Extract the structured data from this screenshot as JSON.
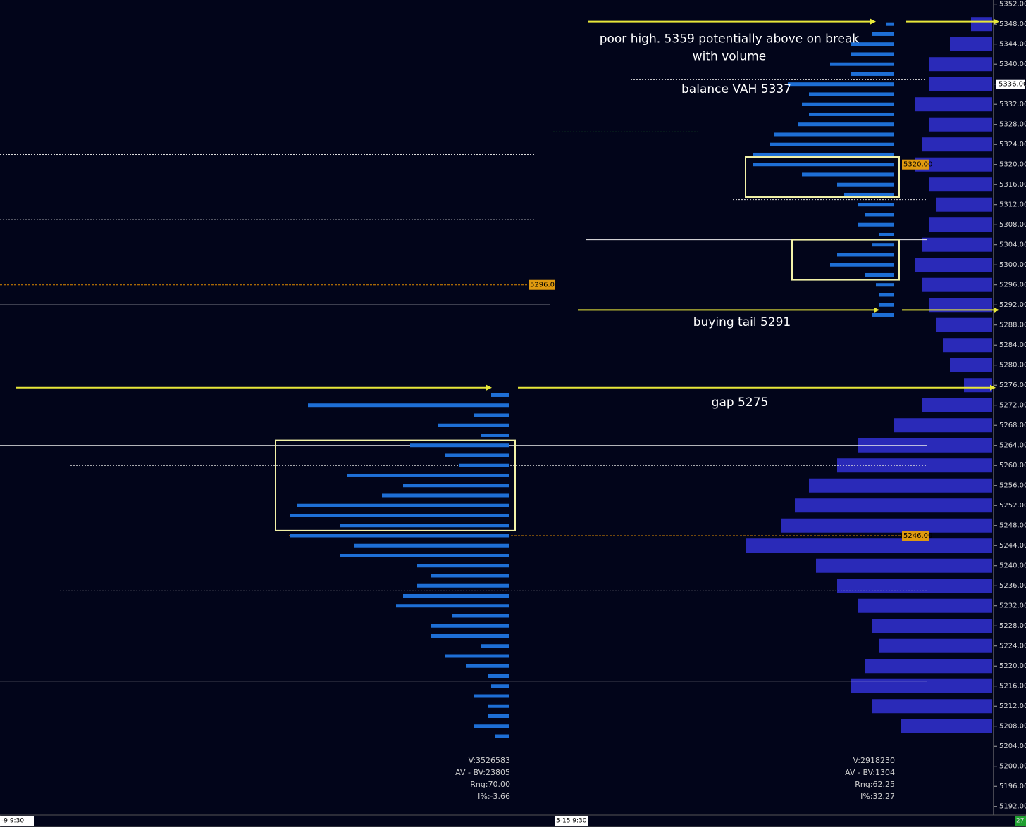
{
  "chart_data": {
    "type": "market-profile",
    "ylim": [
      5190,
      5352.8
    ],
    "yticks": [
      {
        "value": 5192,
        "label": "5192.00"
      },
      {
        "value": 5196,
        "label": "5196.00"
      },
      {
        "value": 5200,
        "label": "5200.00"
      },
      {
        "value": 5204,
        "label": "5204.00"
      },
      {
        "value": 5208,
        "label": "5208.00"
      },
      {
        "value": 5212,
        "label": "5212.00"
      },
      {
        "value": 5216,
        "label": "5216.00"
      },
      {
        "value": 5220,
        "label": "5220.00"
      },
      {
        "value": 5224,
        "label": "5224.00"
      },
      {
        "value": 5228,
        "label": "5228.00"
      },
      {
        "value": 5232,
        "label": "5232.00"
      },
      {
        "value": 5236,
        "label": "5236.00"
      },
      {
        "value": 5240,
        "label": "5240.00"
      },
      {
        "value": 5244,
        "label": "5244.00"
      },
      {
        "value": 5248,
        "label": "5248.00"
      },
      {
        "value": 5252,
        "label": "5252.00"
      },
      {
        "value": 5256,
        "label": "5256.00"
      },
      {
        "value": 5260,
        "label": "5260.00"
      },
      {
        "value": 5264,
        "label": "5264.00"
      },
      {
        "value": 5268,
        "label": "5268.00"
      },
      {
        "value": 5272,
        "label": "5272.00"
      },
      {
        "value": 5276,
        "label": "5276.00"
      },
      {
        "value": 5280,
        "label": "5280.00"
      },
      {
        "value": 5284,
        "label": "5284.00"
      },
      {
        "value": 5288,
        "label": "5288.00"
      },
      {
        "value": 5292,
        "label": "5292.00"
      },
      {
        "value": 5296,
        "label": "5296.00"
      },
      {
        "value": 5300,
        "label": "5300.00"
      },
      {
        "value": 5304,
        "label": "5304.00"
      },
      {
        "value": 5308,
        "label": "5308.00"
      },
      {
        "value": 5312,
        "label": "5312.00"
      },
      {
        "value": 5316,
        "label": "5316.00"
      },
      {
        "value": 5320,
        "label": "5320.00"
      },
      {
        "value": 5324,
        "label": "5324.00"
      },
      {
        "value": 5328,
        "label": "5328.00"
      },
      {
        "value": 5332,
        "label": "5332.00"
      },
      {
        "value": 5336,
        "label": "5336.00"
      },
      {
        "value": 5340,
        "label": "5340.00"
      },
      {
        "value": 5344,
        "label": "5344.00"
      },
      {
        "value": 5348,
        "label": "5348.00"
      },
      {
        "value": 5352,
        "label": "5352.00"
      }
    ],
    "current_price": {
      "value": 5336,
      "label": "5336.00"
    },
    "price_labels": [
      {
        "value": 5320,
        "label": "5320.00"
      },
      {
        "value": 5246,
        "label": "5246.00"
      },
      {
        "value": 5296,
        "label": "5296.0"
      }
    ],
    "levels": [
      {
        "price": 5322,
        "style": "dotted"
      },
      {
        "price": 5309,
        "style": "dotted"
      },
      {
        "price": 5296,
        "style": "orange"
      },
      {
        "price": 5292,
        "style": "solid"
      },
      {
        "price": 5348.5,
        "style": "arrow"
      },
      {
        "price": 5291,
        "style": "arrow"
      },
      {
        "price": 5275.5,
        "style": "arrow"
      },
      {
        "price": 5337,
        "style": "dotted"
      },
      {
        "price": 5313,
        "style": "dotted"
      },
      {
        "price": 5305,
        "style": "solid"
      },
      {
        "price": 5264,
        "style": "solid"
      },
      {
        "price": 5260,
        "style": "dotted"
      },
      {
        "price": 5235,
        "style": "dotted"
      },
      {
        "price": 5217,
        "style": "solid"
      },
      {
        "price": 5326.5,
        "style": "green"
      },
      {
        "price": 5246,
        "style": "orange"
      }
    ],
    "boxes": [
      {
        "high": 5265,
        "low": 5247
      },
      {
        "high": 5321.5,
        "low": 5313.5
      },
      {
        "high": 5305,
        "low": 5297
      }
    ],
    "annotations": [
      {
        "text": "poor high. 5359 potentially above on break",
        "price": 5345
      },
      {
        "text": "with volume",
        "price": 5341.5
      },
      {
        "text": "balance VAH 5337",
        "price": 5335
      },
      {
        "text": "buying tail 5291",
        "price": 5288.5
      },
      {
        "text": "gap 5275",
        "price": 5272.5
      }
    ],
    "series": [
      {
        "name": "session-1 profile",
        "color": "#1e6fd6",
        "prices": [
          5274,
          5272,
          5270,
          5268,
          5266,
          5264,
          5262,
          5260,
          5258,
          5256,
          5254,
          5252,
          5250,
          5248,
          5246,
          5244,
          5242,
          5240,
          5238,
          5236,
          5234,
          5232,
          5230,
          5228,
          5226,
          5224,
          5222,
          5220,
          5218,
          5216,
          5214,
          5212,
          5210,
          5208,
          5206
        ],
        "values": [
          25,
          285,
          50,
          100,
          40,
          140,
          90,
          70,
          230,
          150,
          180,
          300,
          310,
          240,
          310,
          220,
          240,
          130,
          110,
          130,
          150,
          160,
          80,
          110,
          110,
          40,
          90,
          60,
          30,
          25,
          50,
          30,
          30,
          50,
          20
        ]
      },
      {
        "name": "session-2 profile",
        "color": "#1e6fd6",
        "prices": [
          5348,
          5346,
          5344,
          5342,
          5340,
          5338,
          5336,
          5334,
          5332,
          5330,
          5328,
          5326,
          5324,
          5322,
          5320,
          5318,
          5316,
          5314,
          5312,
          5310,
          5308,
          5306,
          5304,
          5302,
          5300,
          5298,
          5296,
          5294,
          5292,
          5290
        ],
        "values": [
          10,
          30,
          60,
          60,
          90,
          60,
          150,
          120,
          130,
          120,
          135,
          170,
          175,
          200,
          200,
          130,
          80,
          70,
          50,
          40,
          50,
          20,
          30,
          80,
          90,
          40,
          25,
          20,
          20,
          30
        ]
      },
      {
        "name": "composite profile",
        "color": "#2a2ab8",
        "prices": [
          5348,
          5344,
          5340,
          5336,
          5332,
          5328,
          5324,
          5320,
          5316,
          5312,
          5308,
          5304,
          5300,
          5296,
          5292,
          5288,
          5284,
          5280,
          5276,
          5272,
          5268,
          5264,
          5260,
          5256,
          5252,
          5248,
          5244,
          5240,
          5236,
          5232,
          5228,
          5224,
          5220,
          5216,
          5212,
          5208
        ],
        "values": [
          30,
          60,
          90,
          90,
          110,
          90,
          100,
          110,
          90,
          80,
          90,
          100,
          110,
          100,
          90,
          80,
          70,
          60,
          40,
          100,
          140,
          190,
          220,
          260,
          280,
          300,
          350,
          250,
          220,
          190,
          170,
          160,
          180,
          200,
          170,
          130
        ]
      }
    ],
    "stats": [
      [
        "V:3526583",
        "AV - BV:23805",
        "Rng:70.00",
        "I%:-3.66"
      ],
      [
        "V:2918230",
        "AV - BV:1304",
        "Rng:62.25",
        "I%:32.27"
      ]
    ],
    "sessions": [
      "-9  9:30",
      "5-15  9:30"
    ],
    "corner": "27"
  }
}
